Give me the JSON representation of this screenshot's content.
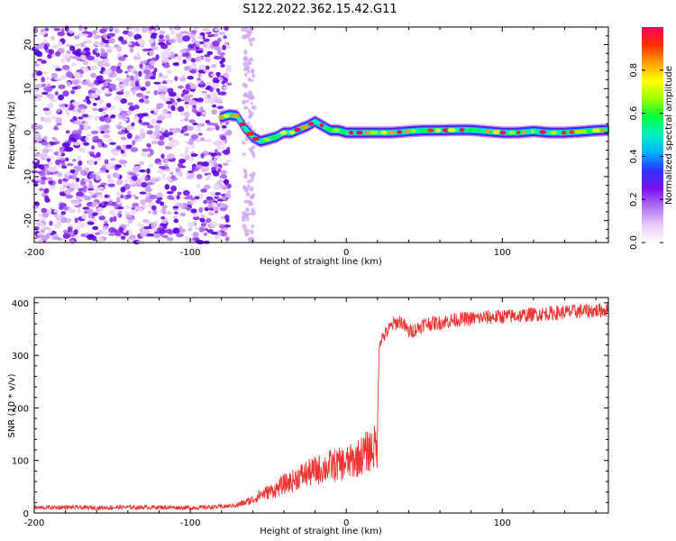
{
  "title": "S122.2022.362.15.42.G11",
  "chart_data": [
    {
      "type": "heatmap",
      "xlabel": "Height of straight line (km)",
      "ylabel": "Frequency (Hz)",
      "xlim": [
        -200,
        168
      ],
      "ylim": [
        -25,
        24
      ],
      "x_ticks": [
        "-200",
        "-100",
        "0",
        "100"
      ],
      "x_tick_values": [
        -200,
        -100,
        0,
        100
      ],
      "y_ticks": [
        "-20",
        "-10",
        "0",
        "10",
        "20"
      ],
      "y_tick_values": [
        -20,
        -10,
        0,
        10,
        20
      ],
      "colorbar": {
        "label": "Normalized spectral amplitude",
        "ticks": [
          "0.0",
          "0.2",
          "0.4",
          "0.6",
          "0.8"
        ],
        "tick_values": [
          0.0,
          0.2,
          0.4,
          0.6,
          0.8
        ],
        "range": [
          0,
          1
        ],
        "colors": [
          "#ffffff",
          "#e8c8f8",
          "#b070f0",
          "#7a10f0",
          "#3030ff",
          "#00b0ff",
          "#00f0c0",
          "#00ff40",
          "#a0ff00",
          "#ffff00",
          "#ffa000",
          "#ff3000",
          "#ff0060"
        ]
      },
      "noise_region_x": [
        -200,
        -75
      ],
      "ridge": {
        "x": [
          -80,
          -75,
          -70,
          -65,
          -60,
          -55,
          -50,
          -45,
          -40,
          -35,
          -30,
          -25,
          -20,
          -15,
          -10,
          -5,
          0,
          10,
          20,
          30,
          40,
          50,
          60,
          70,
          80,
          90,
          100,
          110,
          120,
          130,
          140,
          150,
          160,
          168
        ],
        "y": [
          3.5,
          4.0,
          3.8,
          1.0,
          -1.0,
          -2.0,
          -1.5,
          -1.0,
          0.0,
          0.0,
          0.8,
          1.5,
          2.5,
          1.5,
          0.5,
          0.5,
          0.0,
          0.0,
          0.0,
          0.0,
          0.3,
          0.5,
          0.5,
          0.6,
          0.6,
          0.3,
          0.0,
          0.0,
          0.3,
          0.0,
          0.0,
          0.2,
          0.5,
          0.6
        ]
      }
    },
    {
      "type": "line",
      "xlabel": "Height of straight line (km)",
      "ylabel": "SNR (10 * v/v)",
      "xlim": [
        -200,
        168
      ],
      "ylim": [
        0,
        410
      ],
      "x_ticks": [
        "-200",
        "-100",
        "0",
        "100"
      ],
      "x_tick_values": [
        -200,
        -100,
        0,
        100
      ],
      "y_ticks": [
        "0",
        "100",
        "200",
        "300",
        "400"
      ],
      "y_tick_values": [
        0,
        100,
        200,
        300,
        400
      ],
      "color": "#ee3333",
      "series": [
        {
          "x": [
            -200,
            -180,
            -160,
            -140,
            -120,
            -100,
            -80,
            -70,
            -60,
            -55,
            -50,
            -45,
            -40,
            -35,
            -30,
            -25,
            -20,
            -15,
            -10,
            -5,
            0,
            5,
            10,
            15,
            20,
            21,
            22,
            25,
            30,
            35,
            40,
            45,
            50,
            60,
            70,
            80,
            90,
            100,
            110,
            120,
            130,
            140,
            150,
            160,
            168
          ],
          "y": [
            10,
            11,
            10,
            11,
            11,
            10,
            12,
            15,
            25,
            35,
            40,
            45,
            55,
            60,
            70,
            75,
            80,
            85,
            90,
            92,
            95,
            100,
            110,
            120,
            128,
            320,
            330,
            340,
            360,
            365,
            345,
            350,
            360,
            362,
            368,
            370,
            372,
            374,
            375,
            378,
            380,
            382,
            384,
            385,
            387
          ]
        }
      ]
    }
  ]
}
